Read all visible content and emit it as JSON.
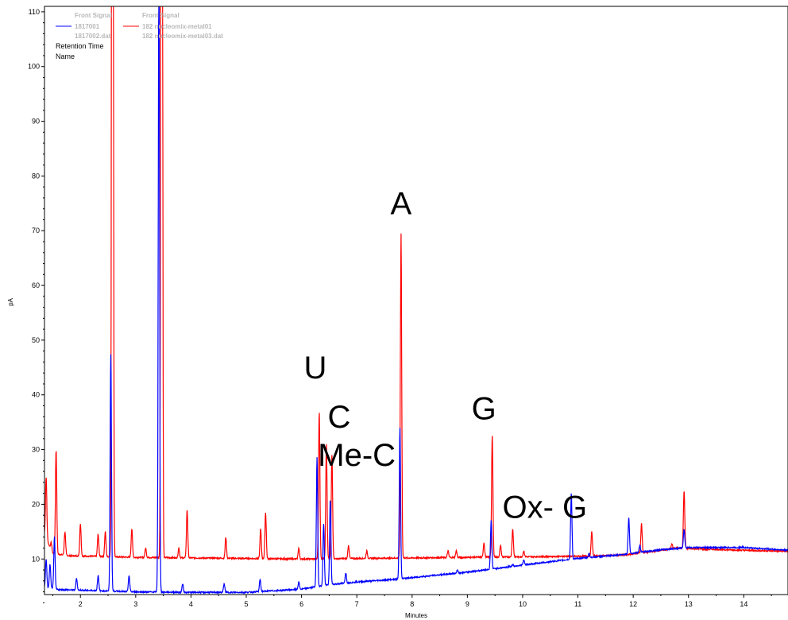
{
  "chart_data": {
    "type": "line",
    "xlabel": "Minutes",
    "ylabel": "pA",
    "xlim": [
      1.35,
      14.8
    ],
    "ylim": [
      3.5,
      111
    ],
    "x_ticks": [
      2,
      3,
      4,
      5,
      6,
      7,
      8,
      9,
      10,
      11,
      12,
      13,
      14
    ],
    "y_ticks": [
      10,
      20,
      30,
      40,
      50,
      60,
      70,
      80,
      90,
      100,
      110
    ],
    "grid": false,
    "legend": {
      "placement": "top-left",
      "entries": [
        {
          "header": "Front Signal",
          "line1": "1817001",
          "line2": "1817002.dat",
          "color": "#0000ff"
        },
        {
          "header": "Front Signal",
          "line1": "182 nucleomix-metal01",
          "line2": "182 nucleomix-metal03.dat",
          "color": "#ff0000"
        }
      ],
      "extra_lines": [
        "Retention Time",
        "Name"
      ]
    },
    "annotations": [
      {
        "text": "A",
        "x": 7.8,
        "y": 73
      },
      {
        "text": "U",
        "x": 6.25,
        "y": 43
      },
      {
        "text": "C",
        "x": 6.68,
        "y": 34
      },
      {
        "text": "Me-C",
        "x": 7.0,
        "y": 27
      },
      {
        "text": "G",
        "x": 9.3,
        "y": 35.5
      },
      {
        "text": "Ox- G",
        "x": 10.4,
        "y": 17.5
      }
    ],
    "series": [
      {
        "name": "182 nucleomix-metal01",
        "color": "#ff0000",
        "baseline": [
          [
            1.35,
            14.5
          ],
          [
            1.5,
            11
          ],
          [
            1.8,
            10.6
          ],
          [
            3.0,
            10.3
          ],
          [
            4.0,
            10.2
          ],
          [
            5.0,
            10.1
          ],
          [
            6.0,
            10.0
          ],
          [
            7.0,
            10.1
          ],
          [
            8.0,
            10.2
          ],
          [
            9.0,
            10.3
          ],
          [
            10.0,
            10.4
          ],
          [
            11.0,
            10.5
          ],
          [
            11.8,
            10.7
          ],
          [
            12.3,
            11.3
          ],
          [
            12.8,
            12.0
          ],
          [
            13.3,
            11.8
          ],
          [
            14.0,
            11.6
          ],
          [
            14.8,
            11.4
          ]
        ],
        "peaks": [
          [
            1.38,
            25
          ],
          [
            1.47,
            13
          ],
          [
            1.56,
            30
          ],
          [
            1.72,
            15
          ],
          [
            2.0,
            16.5
          ],
          [
            2.32,
            14.5
          ],
          [
            2.45,
            15
          ],
          [
            2.58,
            400
          ],
          [
            2.93,
            15.5
          ],
          [
            3.18,
            12
          ],
          [
            3.47,
            400
          ],
          [
            3.78,
            12
          ],
          [
            3.93,
            19
          ],
          [
            4.63,
            14
          ],
          [
            5.26,
            15.5
          ],
          [
            5.35,
            18.5
          ],
          [
            5.95,
            12
          ],
          [
            6.32,
            37
          ],
          [
            6.45,
            31
          ],
          [
            6.55,
            29
          ],
          [
            6.85,
            12.5
          ],
          [
            7.18,
            11.5
          ],
          [
            7.8,
            69.5
          ],
          [
            8.65,
            11.5
          ],
          [
            8.8,
            11.5
          ],
          [
            9.3,
            13
          ],
          [
            9.45,
            32.5
          ],
          [
            9.6,
            12.5
          ],
          [
            9.82,
            15.5
          ],
          [
            10.02,
            11.5
          ],
          [
            11.25,
            15
          ],
          [
            12.15,
            16.5
          ],
          [
            12.7,
            12.8
          ],
          [
            12.92,
            22.5
          ]
        ]
      },
      {
        "name": "1817001",
        "color": "#0000ff",
        "baseline": [
          [
            1.35,
            4.8
          ],
          [
            1.6,
            4.4
          ],
          [
            2.0,
            4.3
          ],
          [
            3.0,
            4.0
          ],
          [
            4.0,
            3.9
          ],
          [
            5.0,
            3.9
          ],
          [
            6.0,
            4.5
          ],
          [
            6.5,
            5.3
          ],
          [
            7.0,
            5.8
          ],
          [
            7.7,
            6.3
          ],
          [
            8.0,
            6.6
          ],
          [
            9.0,
            7.6
          ],
          [
            10.0,
            8.9
          ],
          [
            11.0,
            10.1
          ],
          [
            11.8,
            10.8
          ],
          [
            12.5,
            11.7
          ],
          [
            13.0,
            12.1
          ],
          [
            14.0,
            12.1
          ],
          [
            14.8,
            11.6
          ]
        ],
        "peaks": [
          [
            1.38,
            10
          ],
          [
            1.45,
            9
          ],
          [
            1.53,
            14
          ],
          [
            1.93,
            6.5
          ],
          [
            2.32,
            7
          ],
          [
            2.55,
            47.5
          ],
          [
            2.88,
            7
          ],
          [
            3.42,
            120
          ],
          [
            3.85,
            5.5
          ],
          [
            4.6,
            5.5
          ],
          [
            5.25,
            6.3
          ],
          [
            5.95,
            5.8
          ],
          [
            6.28,
            28.5
          ],
          [
            6.4,
            16.5
          ],
          [
            6.52,
            21
          ],
          [
            6.8,
            7.5
          ],
          [
            7.78,
            34
          ],
          [
            8.82,
            8
          ],
          [
            9.43,
            17
          ],
          [
            9.82,
            9
          ],
          [
            10.02,
            9.8
          ],
          [
            10.88,
            22
          ],
          [
            11.2,
            11
          ],
          [
            11.92,
            17.5
          ],
          [
            12.12,
            12.5
          ],
          [
            12.92,
            15.5
          ]
        ]
      }
    ]
  }
}
